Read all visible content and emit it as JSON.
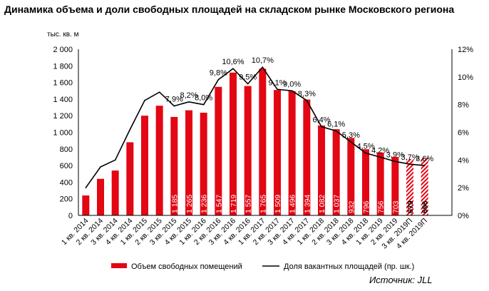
{
  "chart_data": {
    "type": "bar",
    "title": "Динамика объема и доли свободных площадей на складском рынке Московского региона",
    "ylabel": "тыс. кв. м",
    "ylim": [
      0,
      2000
    ],
    "y2lim": [
      0,
      12
    ],
    "y_ticks": [
      "0",
      "200",
      "400",
      "600",
      "800",
      "1 000",
      "1 200",
      "1 400",
      "1 600",
      "1 800",
      "2 000"
    ],
    "y2_ticks": [
      "0%",
      "2%",
      "4%",
      "6%",
      "8%",
      "10%",
      "12%"
    ],
    "categories": [
      "1 кв. 2014",
      "2 кв. 2014",
      "3 кв. 2014",
      "4 кв. 2014",
      "1 кв. 2015",
      "2 кв. 2015",
      "3 кв. 2015",
      "4 кв. 2015",
      "1 кв. 2016",
      "2 кв. 2016",
      "3 кв. 2016",
      "4 кв. 2016",
      "1 кв. 2017",
      "2 кв. 2017",
      "3 кв. 2017",
      "4 кв. 2017",
      "1 кв. 2018",
      "2 кв. 2018",
      "3 кв. 2018",
      "4 кв. 2018",
      "1 кв. 2019",
      "2 кв. 2019",
      "3 кв. 2019П",
      "4 кв. 2019П"
    ],
    "series": [
      {
        "name": "Объем свободных помещений",
        "axis": "left",
        "color": "#e30613",
        "values": [
          240,
          440,
          540,
          880,
          1200,
          1320,
          1185,
          1265,
          1236,
          1547,
          1719,
          1557,
          1765,
          1509,
          1496,
          1394,
          1082,
          1037,
          932,
          796,
          756,
          703,
          679,
          696
        ],
        "data_labels": [
          "",
          "",
          "",
          "",
          "",
          "",
          "1 185",
          "1 265",
          "1 236",
          "1 547",
          "1 719",
          "1 557",
          "1 765",
          "1 509",
          "1 496",
          "1 394",
          "1 082",
          "1 037",
          "932",
          "796",
          "756",
          "703",
          "679",
          "696"
        ],
        "forecast_from_index": 22
      },
      {
        "name": "Доля вакантных площадей (пр. шк.)",
        "axis": "right",
        "color": "#000000",
        "values": [
          2.0,
          3.5,
          4.0,
          6.2,
          8.3,
          8.9,
          7.9,
          8.2,
          8.0,
          9.8,
          10.6,
          9.5,
          10.7,
          9.1,
          9.0,
          8.3,
          6.4,
          6.1,
          5.3,
          4.5,
          4.2,
          3.9,
          3.7,
          3.6
        ],
        "data_labels": [
          "",
          "",
          "",
          "",
          "",
          "",
          "7,9%",
          "8,2%",
          "8,0%",
          "9,8%",
          "10,6%",
          "9,5%",
          "10,7%",
          "9,1%",
          "9,0%",
          "8,3%",
          "6,4%",
          "6,1%",
          "5,3%",
          "4,5%",
          "4,2%",
          "3,9%",
          "3,7%",
          "3,6%"
        ]
      }
    ],
    "legend_position": "bottom",
    "grid": false,
    "source": "Источник: JLL"
  }
}
